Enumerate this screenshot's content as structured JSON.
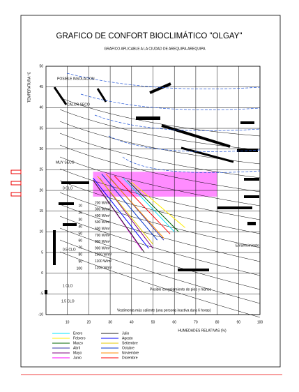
{
  "chart_data": {
    "type": "line",
    "title": "GRAFICO DE CONFORT BIOCLIMÁTICO \"OLGAY\"",
    "subtitle": "GRAFICO APLICABLE A LA CIUDAD DE AREQUIPA-AREQUIPA",
    "x_label": "HUMEDADES RELATIVAS (%)",
    "y_label": "TEMPERATURA °C",
    "xlim": [
      0,
      100
    ],
    "ylim": [
      -10,
      50
    ],
    "xticks": [
      10,
      20,
      30,
      40,
      50,
      60,
      70,
      80,
      90,
      100
    ],
    "yticks": [
      -10,
      -5,
      0,
      5,
      10,
      15,
      20,
      25,
      30,
      35,
      40,
      45,
      50
    ],
    "grid": true,
    "comfort_zone": {
      "color": "#ff66ff",
      "x": [
        22,
        80,
        80,
        22
      ],
      "values": [
        24.5,
        24.5,
        18.5,
        18.5
      ]
    },
    "series": [
      {
        "name": "Enero",
        "color": "#00e5ff",
        "x": [
          36,
          60
        ],
        "values": [
          23,
          10
        ]
      },
      {
        "name": "Febrero",
        "color": "#ffee00",
        "x": [
          40,
          65
        ],
        "values": [
          22,
          11
        ]
      },
      {
        "name": "Marzo",
        "color": "#006600",
        "x": [
          38,
          62
        ],
        "values": [
          22.5,
          10
        ]
      },
      {
        "name": "Abril",
        "color": "#3333aa",
        "x": [
          30,
          55
        ],
        "values": [
          23,
          8
        ]
      },
      {
        "name": "Mayo",
        "color": "#800080",
        "x": [
          25,
          50
        ],
        "values": [
          23,
          6
        ]
      },
      {
        "name": "Junio",
        "color": "#ff00ff",
        "x": [
          22,
          45
        ],
        "values": [
          22.5,
          5.5
        ]
      },
      {
        "name": "Julio",
        "color": "#222222",
        "x": [
          22,
          46
        ],
        "values": [
          22.5,
          5
        ]
      },
      {
        "name": "Agosto",
        "color": "#0000ff",
        "x": [
          22,
          48
        ],
        "values": [
          23,
          6
        ]
      },
      {
        "name": "Setiembre",
        "color": "#e6c800",
        "x": [
          24,
          50
        ],
        "values": [
          23.5,
          7
        ]
      },
      {
        "name": "Octubre",
        "color": "#0033cc",
        "x": [
          26,
          52
        ],
        "values": [
          24,
          8
        ]
      },
      {
        "name": "Noviembre",
        "color": "#ff8800",
        "x": [
          28,
          55
        ],
        "values": [
          24,
          8.5
        ]
      },
      {
        "name": "Diciembre",
        "color": "#ff0000",
        "x": [
          32,
          58
        ],
        "values": [
          23.5,
          9.5
        ]
      }
    ],
    "annotations": [
      "POSIBLE INSOLACION",
      "CALOR SECO",
      "MUY SECO",
      "Enrarecimiento",
      "Posible congelamiento de pies y manos",
      "Vestimenta más caliente (una persona inactiva dura 6 horas)",
      "0 CLO",
      "0.5 CLO",
      "1 CLO",
      "1.5 CLO"
    ],
    "moisture_labels": [
      "10",
      "20",
      "30",
      "40",
      "50",
      "60",
      "70",
      "80",
      "90",
      "100"
    ],
    "radiation_labels": [
      "200 W/m²",
      "300 W/m²",
      "400 W/m²",
      "500 W/m²",
      "600 W/m²",
      "700 W/m²",
      "800 W/m²",
      "900 W/m²",
      "1000 W/m²",
      "1100 W/m²",
      "1200 W/m²"
    ]
  }
}
